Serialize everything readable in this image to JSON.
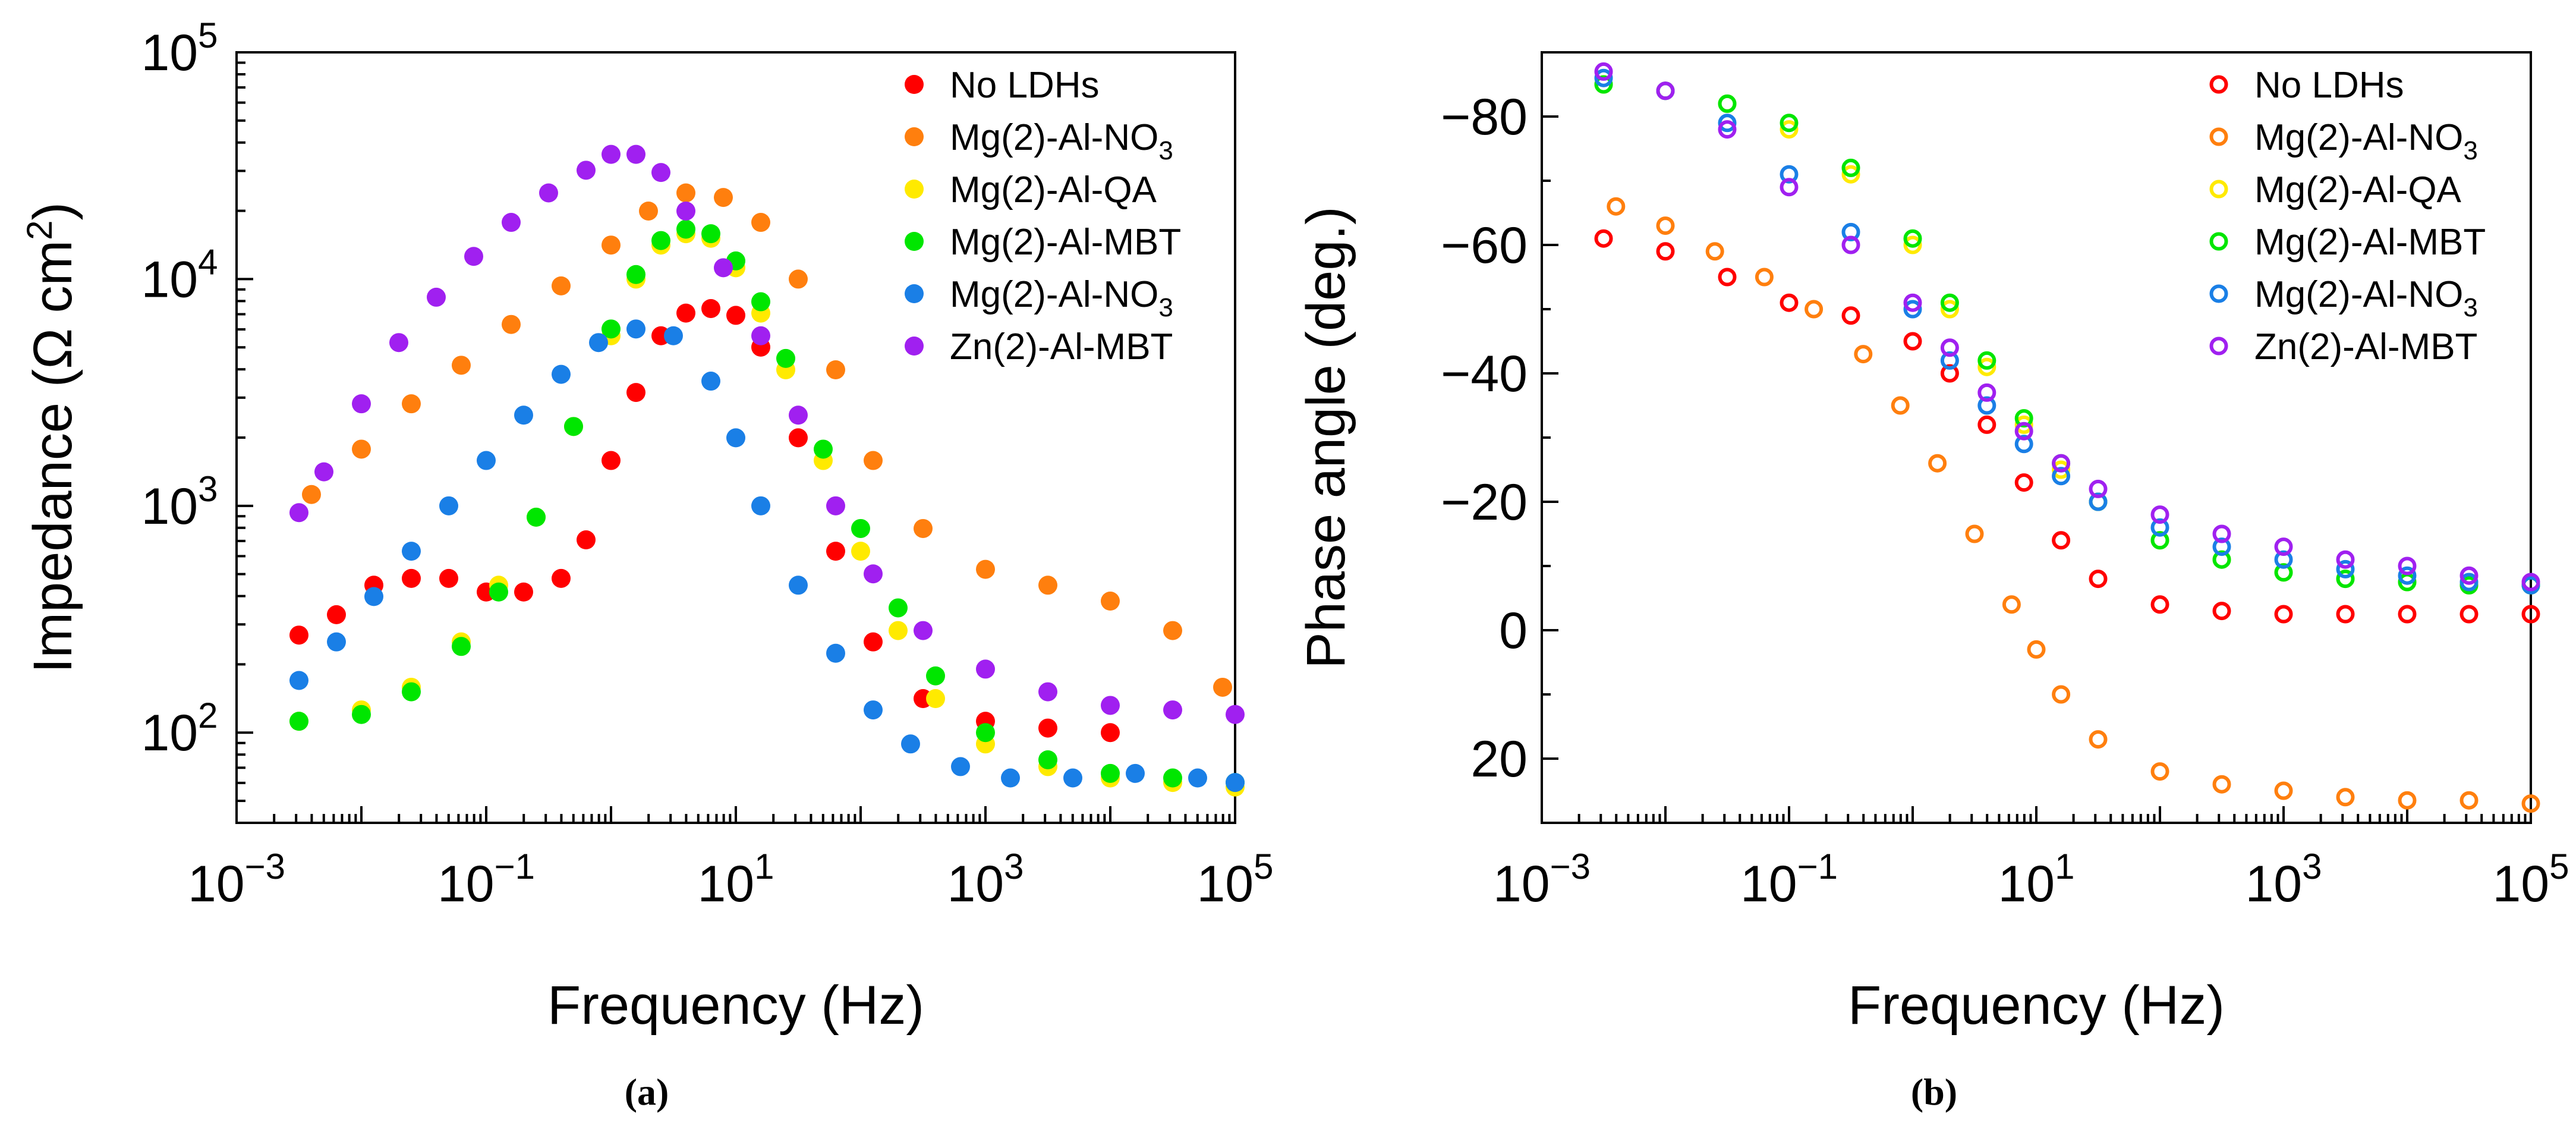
{
  "chart_data": [
    {
      "type": "scatter",
      "panel": "(a)",
      "xlabel": "Frequency (Hz)",
      "ylabel": "Impedance (Ω cm²)",
      "xscale": "log",
      "yscale": "log",
      "xlim": [
        0.001,
        100000
      ],
      "ylim": [
        40,
        100000
      ],
      "x_tick_labels": [
        {
          "value": 0.001,
          "base": "10",
          "exp": "−3"
        },
        {
          "value": 0.1,
          "base": "10",
          "exp": "−1"
        },
        {
          "value": 10,
          "base": "10",
          "exp": "1"
        },
        {
          "value": 1000,
          "base": "10",
          "exp": "3"
        },
        {
          "value": 100000,
          "base": "10",
          "exp": "5"
        }
      ],
      "y_tick_labels": [
        {
          "value": 100,
          "base": "10",
          "exp": "2"
        },
        {
          "value": 1000,
          "base": "10",
          "exp": "3"
        },
        {
          "value": 10000,
          "base": "10",
          "exp": "4"
        },
        {
          "value": 100000,
          "base": "10",
          "exp": "5"
        }
      ],
      "marker": "filled-circle",
      "legend_position": "top-right",
      "series": [
        {
          "name": "No LDHs",
          "legend": [
            "No LDHs"
          ],
          "color": "#ff0000",
          "logf": [
            -2.5,
            -2.2,
            -1.9,
            -1.6,
            -1.3,
            -1.0,
            -0.7,
            -0.4,
            -0.2,
            0.0,
            0.2,
            0.4,
            0.6,
            0.8,
            1.0,
            1.2,
            1.5,
            1.8,
            2.1,
            2.5,
            3.0,
            3.5,
            4.0
          ],
          "logz": [
            2.43,
            2.52,
            2.65,
            2.68,
            2.68,
            2.62,
            2.62,
            2.68,
            2.85,
            3.2,
            3.5,
            3.75,
            3.85,
            3.87,
            3.84,
            3.7,
            3.3,
            2.8,
            2.4,
            2.15,
            2.05,
            2.02,
            2.0
          ]
        },
        {
          "name": "Mg(2)-Al-NO3",
          "legend": [
            "Mg(2)-Al-NO",
            "3",
            ""
          ],
          "color": "#ff7f0e",
          "logf": [
            -2.4,
            -2.0,
            -1.6,
            -1.2,
            -0.8,
            -0.4,
            0.0,
            0.3,
            0.6,
            0.9,
            1.2,
            1.5,
            1.8,
            2.1,
            2.5,
            3.0,
            3.5,
            4.0,
            4.5,
            4.9
          ],
          "logz": [
            3.05,
            3.25,
            3.45,
            3.62,
            3.8,
            3.97,
            4.15,
            4.3,
            4.38,
            4.36,
            4.25,
            4.0,
            3.6,
            3.2,
            2.9,
            2.72,
            2.65,
            2.58,
            2.45,
            2.2
          ]
        },
        {
          "name": "Mg(2)-Al-QA",
          "legend": [
            "Mg(2)-Al-QA"
          ],
          "color": "#ffea00",
          "logf": [
            -2.5,
            -2.0,
            -1.6,
            -1.2,
            -0.9,
            -0.6,
            -0.3,
            0.0,
            0.2,
            0.4,
            0.6,
            0.8,
            1.0,
            1.2,
            1.4,
            1.7,
            2.0,
            2.3,
            2.6,
            3.0,
            3.5,
            4.0,
            4.5,
            5.0
          ],
          "logz": [
            2.05,
            2.1,
            2.2,
            2.4,
            2.65,
            2.95,
            3.35,
            3.75,
            4.0,
            4.15,
            4.2,
            4.18,
            4.05,
            3.85,
            3.6,
            3.2,
            2.8,
            2.45,
            2.15,
            1.95,
            1.85,
            1.8,
            1.78,
            1.76
          ]
        },
        {
          "name": "Mg(2)-Al-MBT",
          "legend": [
            "Mg(2)-Al-MBT"
          ],
          "color": "#00e600",
          "logf": [
            -2.5,
            -2.0,
            -1.6,
            -1.2,
            -0.9,
            -0.6,
            -0.3,
            0.0,
            0.2,
            0.4,
            0.6,
            0.8,
            1.0,
            1.2,
            1.4,
            1.7,
            2.0,
            2.3,
            2.6,
            3.0,
            3.5,
            4.0,
            4.5,
            5.0
          ],
          "logz": [
            2.05,
            2.08,
            2.18,
            2.38,
            2.62,
            2.95,
            3.35,
            3.78,
            4.02,
            4.17,
            4.22,
            4.2,
            4.08,
            3.9,
            3.65,
            3.25,
            2.9,
            2.55,
            2.25,
            2.0,
            1.88,
            1.82,
            1.8,
            1.78
          ]
        },
        {
          "name": "Mg(2)-Al-NO3",
          "legend": [
            "Mg(2)-Al-NO",
            "3",
            " "
          ],
          "color": "#1a7fe6",
          "logf": [
            -2.5,
            -2.2,
            -1.9,
            -1.6,
            -1.3,
            -1.0,
            -0.7,
            -0.4,
            -0.1,
            0.2,
            0.5,
            0.8,
            1.0,
            1.2,
            1.5,
            1.8,
            2.1,
            2.4,
            2.8,
            3.2,
            3.7,
            4.2,
            4.7,
            5.0
          ],
          "logz": [
            2.23,
            2.4,
            2.6,
            2.8,
            3.0,
            3.2,
            3.4,
            3.58,
            3.72,
            3.78,
            3.75,
            3.55,
            3.3,
            3.0,
            2.65,
            2.35,
            2.1,
            1.95,
            1.85,
            1.8,
            1.8,
            1.82,
            1.8,
            1.78
          ]
        },
        {
          "name": "Zn(2)-Al-MBT",
          "legend": [
            "Zn(2)-Al-MBT"
          ],
          "color": "#a020f0",
          "logf": [
            -2.5,
            -2.3,
            -2.0,
            -1.7,
            -1.4,
            -1.1,
            -0.8,
            -0.5,
            -0.2,
            0.0,
            0.2,
            0.4,
            0.6,
            0.9,
            1.2,
            1.5,
            1.8,
            2.1,
            2.5,
            3.0,
            3.5,
            4.0,
            4.5,
            5.0
          ],
          "logz": [
            2.97,
            3.15,
            3.45,
            3.72,
            3.92,
            4.1,
            4.25,
            4.38,
            4.48,
            4.55,
            4.55,
            4.47,
            4.3,
            4.05,
            3.75,
            3.4,
            3.0,
            2.7,
            2.45,
            2.28,
            2.18,
            2.12,
            2.1,
            2.08
          ]
        }
      ]
    },
    {
      "type": "scatter",
      "panel": "(b)",
      "xlabel": "Frequency (Hz)",
      "ylabel": "Phase angle (deg.)",
      "xscale": "log",
      "yscale": "linear",
      "y_inverted": true,
      "xlim": [
        0.001,
        100000
      ],
      "ylim": [
        -90,
        30
      ],
      "x_tick_labels": [
        {
          "value": 0.001,
          "base": "10",
          "exp": "−3"
        },
        {
          "value": 0.1,
          "base": "10",
          "exp": "−1"
        },
        {
          "value": 10,
          "base": "10",
          "exp": "1"
        },
        {
          "value": 1000,
          "base": "10",
          "exp": "3"
        },
        {
          "value": 100000,
          "base": "10",
          "exp": "5"
        }
      ],
      "y_tick_labels": [
        {
          "value": -80,
          "text": "−80"
        },
        {
          "value": -60,
          "text": "−60"
        },
        {
          "value": -40,
          "text": "−40"
        },
        {
          "value": -20,
          "text": "−20"
        },
        {
          "value": 0,
          "text": "0"
        },
        {
          "value": 20,
          "text": "20"
        }
      ],
      "marker": "open-circle",
      "legend_position": "top-right",
      "series": [
        {
          "name": "No LDHs",
          "legend": [
            "No LDHs"
          ],
          "color": "#ff0000",
          "logf": [
            -2.5,
            -2.0,
            -1.5,
            -1.0,
            -0.5,
            0.0,
            0.3,
            0.6,
            0.9,
            1.2,
            1.5,
            2.0,
            2.5,
            3.0,
            3.5,
            4.0,
            4.5,
            5.0
          ],
          "phase": [
            -61,
            -59,
            -55,
            -51,
            -49,
            -45,
            -40,
            -32,
            -23,
            -14,
            -8,
            -4,
            -3,
            -2.5,
            -2.5,
            -2.5,
            -2.5,
            -2.5
          ]
        },
        {
          "name": "Mg(2)-Al-NO3",
          "legend": [
            "Mg(2)-Al-NO",
            "3",
            ""
          ],
          "color": "#ff7f0e",
          "logf": [
            -2.4,
            -2.0,
            -1.6,
            -1.2,
            -0.8,
            -0.4,
            -0.1,
            0.2,
            0.5,
            0.8,
            1.0,
            1.2,
            1.5,
            2.0,
            2.5,
            3.0,
            3.5,
            4.0,
            4.5,
            5.0
          ],
          "phase": [
            -66,
            -63,
            -59,
            -55,
            -50,
            -43,
            -35,
            -26,
            -15,
            -4,
            3,
            10,
            17,
            22,
            24,
            25,
            26,
            26.5,
            26.5,
            27
          ]
        },
        {
          "name": "Mg(2)-Al-QA",
          "legend": [
            "Mg(2)-Al-QA"
          ],
          "color": "#ffea00",
          "logf": [
            -2.5,
            -2.0,
            -1.5,
            -1.0,
            -0.5,
            0.0,
            0.3,
            0.6,
            0.9,
            1.2,
            1.5,
            2.0,
            2.5,
            3.0,
            3.5,
            4.0,
            4.5,
            5.0
          ],
          "phase": [
            -85,
            -84,
            -82,
            -78,
            -71,
            -60,
            -50,
            -41,
            -32,
            -25,
            -20,
            -14,
            -11,
            -9,
            -8,
            -7.5,
            -7,
            -7
          ]
        },
        {
          "name": "Mg(2)-Al-MBT",
          "legend": [
            "Mg(2)-Al-MBT"
          ],
          "color": "#00e600",
          "logf": [
            -2.5,
            -2.0,
            -1.5,
            -1.0,
            -0.5,
            0.0,
            0.3,
            0.6,
            0.9,
            1.2,
            1.5,
            2.0,
            2.5,
            3.0,
            3.5,
            4.0,
            4.5,
            5.0
          ],
          "phase": [
            -85,
            -84,
            -82,
            -79,
            -72,
            -61,
            -51,
            -42,
            -33,
            -26,
            -20,
            -14,
            -11,
            -9,
            -8,
            -7.5,
            -7,
            -7
          ]
        },
        {
          "name": "Mg(2)-Al-NO3",
          "legend": [
            "Mg(2)-Al-NO",
            "3",
            " "
          ],
          "color": "#1a7fe6",
          "logf": [
            -2.5,
            -2.0,
            -1.5,
            -1.0,
            -0.5,
            0.0,
            0.3,
            0.6,
            0.9,
            1.2,
            1.5,
            2.0,
            2.5,
            3.0,
            3.5,
            4.0,
            4.5,
            5.0
          ],
          "phase": [
            -86,
            -84,
            -79,
            -71,
            -62,
            -50,
            -42,
            -35,
            -29,
            -24,
            -20,
            -16,
            -13,
            -11,
            -9.5,
            -8.5,
            -7.5,
            -7
          ]
        },
        {
          "name": "Zn(2)-Al-MBT",
          "legend": [
            "Zn(2)-Al-MBT"
          ],
          "color": "#a020f0",
          "logf": [
            -2.5,
            -2.0,
            -1.5,
            -1.0,
            -0.5,
            0.0,
            0.3,
            0.6,
            0.9,
            1.2,
            1.5,
            2.0,
            2.5,
            3.0,
            3.5,
            4.0,
            4.5,
            5.0
          ],
          "phase": [
            -87,
            -84,
            -78,
            -69,
            -60,
            -51,
            -44,
            -37,
            -31,
            -26,
            -22,
            -18,
            -15,
            -13,
            -11,
            -10,
            -8.5,
            -7.5
          ]
        }
      ]
    }
  ]
}
